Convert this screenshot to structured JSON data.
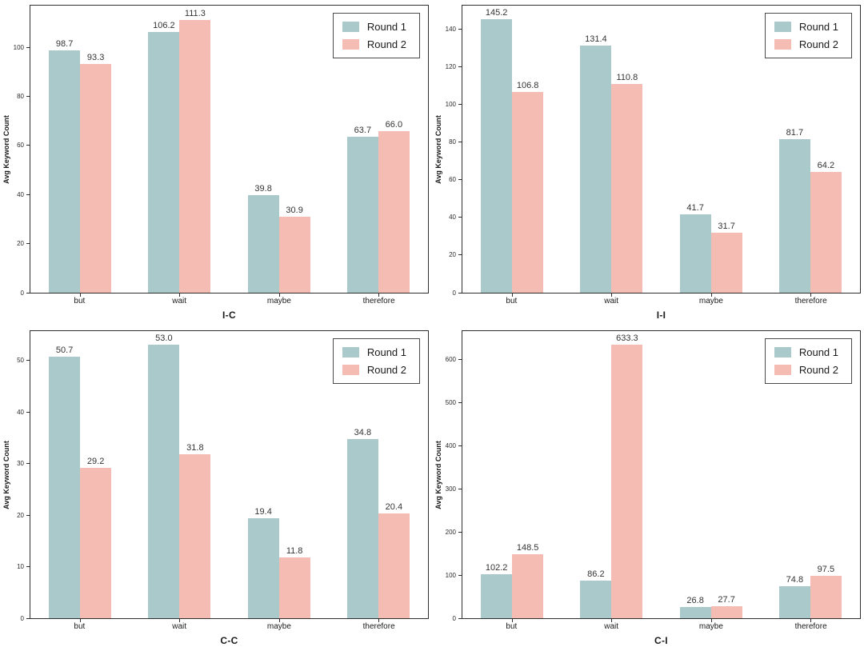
{
  "figure": {
    "ylabel": "Avg Keyword Count",
    "categories": [
      "but",
      "wait",
      "maybe",
      "therefore"
    ],
    "colors": {
      "round1": "#aac9cb",
      "round2": "#f4bcb2",
      "axis": "#2e2e2e",
      "text": "#1a1a1a"
    },
    "legend": {
      "position": "upper right",
      "items": [
        {
          "label": "Round 1",
          "color": "#aac9cb"
        },
        {
          "label": "Round 2",
          "color": "#f4bcb2"
        }
      ]
    }
  },
  "chart_data": [
    {
      "type": "bar",
      "title": "I-C",
      "xlabel": "I-C",
      "ylabel": "Avg Keyword Count",
      "categories": [
        "but",
        "wait",
        "maybe",
        "therefore"
      ],
      "series": [
        {
          "name": "Round 1",
          "color": "#aac9cb",
          "values": [
            98.7,
            106.2,
            39.8,
            63.7
          ]
        },
        {
          "name": "Round 2",
          "color": "#f4bcb2",
          "values": [
            93.3,
            111.3,
            30.9,
            66.0
          ]
        }
      ],
      "yticks": [
        0,
        20,
        40,
        60,
        80,
        100
      ],
      "ylim": [
        0,
        117
      ],
      "grid": false,
      "legend_position": "upper right"
    },
    {
      "type": "bar",
      "title": "I-I",
      "xlabel": "I-I",
      "ylabel": "Avg Keyword Count",
      "categories": [
        "but",
        "wait",
        "maybe",
        "therefore"
      ],
      "series": [
        {
          "name": "Round 1",
          "color": "#aac9cb",
          "values": [
            145.2,
            131.4,
            41.7,
            81.7
          ]
        },
        {
          "name": "Round 2",
          "color": "#f4bcb2",
          "values": [
            106.8,
            110.8,
            31.7,
            64.2
          ]
        }
      ],
      "yticks": [
        0,
        20,
        40,
        60,
        80,
        100,
        120,
        140
      ],
      "ylim": [
        0,
        152.5
      ],
      "grid": false,
      "legend_position": "upper right"
    },
    {
      "type": "bar",
      "title": "C-C",
      "xlabel": "C-C",
      "ylabel": "Avg Keyword Count",
      "categories": [
        "but",
        "wait",
        "maybe",
        "therefore"
      ],
      "series": [
        {
          "name": "Round 1",
          "color": "#aac9cb",
          "values": [
            50.7,
            53.0,
            19.4,
            34.8
          ]
        },
        {
          "name": "Round 2",
          "color": "#f4bcb2",
          "values": [
            29.2,
            31.8,
            11.8,
            20.4
          ]
        }
      ],
      "yticks": [
        0,
        10,
        20,
        30,
        40,
        50
      ],
      "ylim": [
        0,
        55.7
      ],
      "grid": false,
      "legend_position": "upper right"
    },
    {
      "type": "bar",
      "title": "C-I",
      "xlabel": "C-I",
      "ylabel": "Avg Keyword Count",
      "categories": [
        "but",
        "wait",
        "maybe",
        "therefore"
      ],
      "series": [
        {
          "name": "Round 1",
          "color": "#aac9cb",
          "values": [
            102.2,
            86.2,
            26.8,
            74.8
          ]
        },
        {
          "name": "Round 2",
          "color": "#f4bcb2",
          "values": [
            148.5,
            633.3,
            27.7,
            97.5
          ]
        }
      ],
      "yticks": [
        0,
        100,
        200,
        300,
        400,
        500,
        600
      ],
      "ylim": [
        0,
        665
      ],
      "grid": false,
      "legend_position": "upper right"
    }
  ]
}
